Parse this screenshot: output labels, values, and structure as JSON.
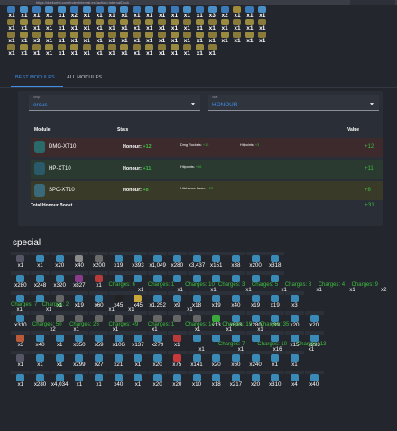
{
  "browser": {
    "url": "https://darkorbit.com/indexInternal.es?action=internalDock"
  },
  "inventory": {
    "rows": [
      {
        "counts": [
          "x1",
          "x1",
          "x1",
          "x1",
          "x1",
          "x2",
          "x1",
          "x1",
          "x1",
          "x1",
          "x1",
          "x1",
          "x1",
          "x1",
          "x1",
          "x1",
          "x3",
          "x2",
          "x1",
          "x1",
          "x1"
        ],
        "colors": [
          "#3a7ab8",
          "#4a90c8",
          "#3a7ab8",
          "#4a90c8",
          "#4a90c8",
          "#3a7ab8",
          "#4a90c8",
          "#3a7ab8",
          "#4a90c8",
          "#4a90c8",
          "#3a7ab8",
          "#4a90c8",
          "#4a90c8",
          "#3a7ab8",
          "#4a90c8",
          "#3a7ab8",
          "#4a90c8",
          "#3a7ab8",
          "#a08a3a",
          "#3a7ab8",
          "#4a90c8"
        ]
      },
      {
        "counts": [
          "x1",
          "x1",
          "x1",
          "x1",
          "x1",
          "x1",
          "x1",
          "x1",
          "x1",
          "x1",
          "x1",
          "x1",
          "x1",
          "x1",
          "x1",
          "x1",
          "x1",
          "x1",
          "x1",
          "x1",
          "x1"
        ],
        "colors": [
          "#8a7a3a",
          "#9a8a40",
          "#8a7a3a",
          "#9a8a40",
          "#8a7a3a",
          "#9a8a40",
          "#8a7a3a",
          "#9a8a40",
          "#8a7a3a",
          "#9a8a40",
          "#8a7a3a",
          "#9a8a40",
          "#8a7a3a",
          "#9a8a40",
          "#8a7a3a",
          "#9a8a40",
          "#8a7a3a",
          "#9a8a40",
          "#8a7a3a",
          "#9a8a40",
          "#8a7a3a"
        ]
      },
      {
        "counts": [
          "x1",
          "x1",
          "x3",
          "x1",
          "x1",
          "x1",
          "x1",
          "x1",
          "x1",
          "x1",
          "x1",
          "x1",
          "x1",
          "x1",
          "x1",
          "x1",
          "x1",
          "x1",
          "x1",
          "x1",
          "x1"
        ],
        "colors": [
          "#8a7a3a",
          "#9a8a40",
          "#8a7a3a",
          "#9a8a40",
          "#8a7a3a",
          "#9a8a40",
          "#8a7a3a",
          "#9a8a40",
          "#8a7a3a",
          "#9a8a40",
          "#8a7a3a",
          "#9a8a40",
          "#8a7a3a",
          "#9a8a40",
          "#8a7a3a",
          "#9a8a40",
          "#8a7a3a",
          "#9a8a40",
          "#8a7a3a",
          "#9a8a40",
          "#8a7a3a"
        ]
      },
      {
        "counts": [
          "x1",
          "x1",
          "x1",
          "x1",
          "x1",
          "x1",
          "x1",
          "x1",
          "x1",
          "x1",
          "x1",
          "x1",
          "x1",
          "x1",
          "x1",
          "x1",
          "x1"
        ],
        "colors": [
          "#8a7a3a",
          "#9a8a40",
          "#8a7a3a",
          "#9a8a40",
          "#8a7a3a",
          "#9a8a40",
          "#8a7a3a",
          "#9a8a40",
          "#8a7a3a",
          "#9a8a40",
          "#8a7a3a",
          "#9a8a40",
          "#8a7a3a",
          "#9a8a40",
          "#8a7a3a",
          "#9a8a40",
          "#8a7a3a"
        ]
      }
    ]
  },
  "tabs": [
    {
      "label": "BEST MODULES",
      "active": true
    },
    {
      "label": "ALL MODULES",
      "active": false
    }
  ],
  "filters": {
    "ship": {
      "label": "Ship",
      "value": "orcus"
    },
    "stat": {
      "label": "Stat",
      "value": "HONOUR"
    }
  },
  "table": {
    "headers": {
      "module": "Module",
      "stats": "Stats",
      "value": "Value"
    },
    "rows": [
      {
        "name": "DMG-XT10",
        "honour_label": "Honour:",
        "honour": "+12",
        "stat1_label": "Dmg Rockets:",
        "stat1": "+15",
        "stat2_label": "Hitpoints:",
        "stat2": "+3",
        "value": "+12",
        "bg": "#3d2a2c",
        "icon": "#2a6a6a"
      },
      {
        "name": "HP-XT10",
        "honour_label": "Honour:",
        "honour": "+11",
        "stat1_label": "Hitpoints:",
        "stat1": "+16",
        "stat2_label": "",
        "stat2": "",
        "value": "+11",
        "bg": "#2a3a30",
        "icon": "#2a5a6a"
      },
      {
        "name": "SPC-XT10",
        "honour_label": "Honour:",
        "honour": "+8",
        "stat1_label": "Hitchance Laser:",
        "stat1": "+15",
        "stat2_label": "",
        "stat2": "",
        "value": "+8",
        "bg": "#3a3a28",
        "icon": "#3a6a7a"
      }
    ],
    "total_label": "Total Honour Boost",
    "total_value": "+31"
  },
  "special": {
    "title": "special",
    "rows": [
      {
        "counts": [
          "x1",
          "x1",
          "x20",
          "x40",
          "x200",
          "x19",
          "x393",
          "x1,049",
          "x280",
          "x3,437",
          "x151",
          "x38",
          "x200",
          "x318"
        ],
        "colors": [
          "#556",
          "#3a8ab8",
          "#3a8ab8",
          "#8a8a8a",
          "#6a6a6a",
          "#3a8ab8",
          "#3a8ab8",
          "#3a8ab8",
          "#3a8ab8",
          "#3a8ab8",
          "#3a8ab8",
          "#3a8ab8",
          "#3a8ab8",
          "#3a8ab8"
        ]
      },
      {
        "counts": [
          "x280",
          "x248",
          "x320",
          "x827",
          "x1",
          "",
          "",
          "",
          "",
          "",
          "",
          "",
          "",
          ""
        ],
        "colors": [
          "#3a8ab8",
          "#3a8ab8",
          "#3a8ab8",
          "#8a3a8a",
          "#b83a3a",
          "#3a8ab8",
          "#3a8ab8",
          "#3a8ab8",
          "#3a8ab8",
          "#3a8ab8",
          "#3a8ab8",
          "#3a8ab8",
          "#3a8ab8",
          "#3a8ab8"
        ],
        "charges": [
          {
            "at": 5,
            "text": "Charges: 6"
          },
          {
            "at": 7,
            "text": "Charges: 1"
          },
          {
            "at": 8.9,
            "text": "Charges: 10"
          },
          {
            "at": 10.6,
            "text": "Charges: 3"
          },
          {
            "at": 12.3,
            "text": "Charges: 5"
          },
          {
            "at": 14,
            "text": "Charges: 8"
          },
          {
            "at": 15.7,
            "text": "Charges: 4"
          },
          {
            "at": 17.4,
            "text": "Charges: 9"
          }
        ],
        "subcounts": [
          {
            "at": 6.5,
            "text": "x1"
          },
          {
            "at": 8.5,
            "text": "x1"
          },
          {
            "at": 10.2,
            "text": "x1"
          },
          {
            "at": 12,
            "text": "x1"
          },
          {
            "at": 13.8,
            "text": "x1"
          },
          {
            "at": 15.6,
            "text": "x1"
          },
          {
            "at": 17.3,
            "text": "x1"
          },
          {
            "at": 18.9,
            "text": "x2"
          }
        ]
      },
      {
        "counts": [
          "",
          "",
          "x1",
          "x19",
          "x60",
          "x45",
          "x45",
          "x1,252",
          "x9",
          "x18",
          "x19",
          "x40",
          "x19",
          "x19",
          "x3"
        ],
        "colors": [
          "#3a8ab8",
          "#3a8ab8",
          "#666",
          "#3a8ab8",
          "#3a8ab8",
          "#222",
          "#c8a83a",
          "#3a8ab8",
          "#3a8ab8",
          "#3a8ab8",
          "#3a8ab8",
          "#3a8ab8",
          "#3a8ab8",
          "#3a8ab8",
          "#3a8ab8"
        ],
        "charges": [
          {
            "at": 0,
            "text": "Charges: 7"
          },
          {
            "at": 1.6,
            "text": "Charges: 2"
          }
        ],
        "subcounts": [
          {
            "at": 0.3,
            "text": "x1"
          },
          {
            "at": 1.8,
            "text": "x1"
          },
          {
            "at": 5,
            "text": "x1"
          },
          {
            "at": 6,
            "text": "x1"
          },
          {
            "at": 9,
            "text": "x1"
          }
        ]
      },
      {
        "counts": [
          "x310",
          "",
          "",
          "",
          "",
          "",
          "",
          "",
          "",
          "",
          "x13",
          "x893",
          "x280",
          "x39",
          "x20",
          "x20"
        ],
        "colors": [
          "#3a8ab8",
          "#666",
          "#666",
          "#666",
          "#666",
          "#666",
          "#666",
          "#666",
          "#666",
          "#666",
          "#3aa83a",
          "#3a8ab8",
          "#3a8ab8",
          "#3a8ab8",
          "#3a8ab8",
          "#3a8ab8"
        ],
        "charges": [
          {
            "at": 1.1,
            "text": "Charges: 50"
          },
          {
            "at": 3,
            "text": "Charges: 26"
          },
          {
            "at": 5,
            "text": "Charges: 49"
          },
          {
            "at": 7,
            "text": "Charges: 1"
          },
          {
            "at": 8.9,
            "text": "Charges: 14"
          },
          {
            "at": 10.8,
            "text": "Charges: 19"
          },
          {
            "at": 12.7,
            "text": "Charges: 35"
          }
        ],
        "subcounts": [
          {
            "at": 2,
            "text": "x2"
          },
          {
            "at": 3.2,
            "text": "x1"
          },
          {
            "at": 5.2,
            "text": "x1"
          },
          {
            "at": 7.2,
            "text": "x1"
          },
          {
            "at": 9.4,
            "text": "x1"
          },
          {
            "at": 11,
            "text": "x1"
          },
          {
            "at": 12.6,
            "text": "x1"
          }
        ]
      },
      {
        "counts": [
          "x3",
          "x40",
          "x1",
          "x350",
          "x59",
          "x106",
          "x137",
          "x279",
          "x1",
          "",
          "",
          "",
          "",
          "",
          "x15",
          "x293"
        ],
        "colors": [
          "#b85a3a",
          "#3a8ab8",
          "#3a8ab8",
          "#3a8ab8",
          "#3a8ab8",
          "#3a8ab8",
          "#3a8ab8",
          "#3a8ab8",
          "#b83a3a",
          "#3a8ab8",
          "#3a8ab8",
          "#3a8ab8",
          "#3a8ab8",
          "#3a8ab8",
          "#3a8ab8",
          "#3a8ab8"
        ],
        "charges": [
          {
            "at": 10.6,
            "text": "Charges: 7"
          },
          {
            "at": 12.6,
            "text": "Charges: 10"
          },
          {
            "at": 14.6,
            "text": "Charges: 13"
          }
        ],
        "subcounts": [
          {
            "at": 9.6,
            "text": "x1"
          },
          {
            "at": 11.6,
            "text": "x1"
          },
          {
            "at": 13.4,
            "text": "x16"
          },
          {
            "at": 15.2,
            "text": "x1"
          }
        ]
      },
      {
        "counts": [
          "x1",
          "x1",
          "x1",
          "x299",
          "x27",
          "x21",
          "x1",
          "x20",
          "x75",
          "x141",
          "x20",
          "x60",
          "x240",
          "x1",
          "x1"
        ],
        "colors": [
          "#556",
          "#3a8ab8",
          "#3a8ab8",
          "#3a8ab8",
          "#3a8ab8",
          "#3a8ab8",
          "#3a8ab8",
          "#3a8ab8",
          "#c83a3a",
          "#3a8ab8",
          "#3a8ab8",
          "#3a8ab8",
          "#3a8ab8",
          "#3a8ab8",
          "#3a8ab8"
        ]
      },
      {
        "counts": [
          "x1",
          "x280",
          "x4,034",
          "x1",
          "x1",
          "x40",
          "x1",
          "x20",
          "x20",
          "x10",
          "x18",
          "x217",
          "x20",
          "x310",
          "x4",
          "x40"
        ],
        "colors": [
          "#3a8ab8",
          "#3a8ab8",
          "#3a8ab8",
          "#3a8ab8",
          "#3a8ab8",
          "#3a8ab8",
          "#3a8ab8",
          "#3a8ab8",
          "#3a8ab8",
          "#3a8ab8",
          "#3a8ab8",
          "#3a8ab8",
          "#3a8ab8",
          "#3a8ab8",
          "#3a8ab8",
          "#3a8ab8"
        ]
      }
    ]
  }
}
